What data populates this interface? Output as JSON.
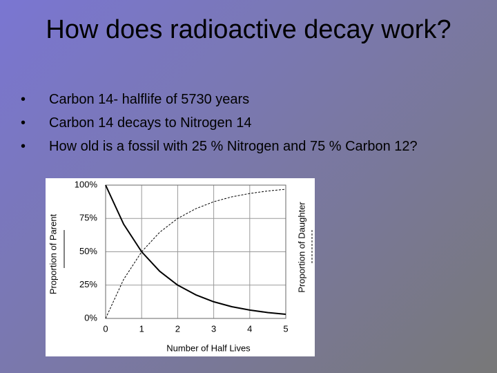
{
  "slide": {
    "title": "How does radioactive decay work?",
    "bullets": [
      "Carbon 14- halflife of 5730 years",
      "Carbon 14 decays to Nitrogen 14",
      "How old is a fossil with 25 % Nitrogen and 75 % Carbon 12?"
    ]
  },
  "chart_data": {
    "type": "line",
    "x_label": "Number of Half Lives",
    "x": [
      0,
      0.5,
      1,
      1.5,
      2,
      2.5,
      3,
      3.5,
      4,
      4.5,
      5
    ],
    "series": [
      {
        "name": "Proportion of Parent",
        "color": "#000000",
        "dash": "solid",
        "values": [
          100,
          70.7,
          50,
          35.4,
          25,
          17.7,
          12.5,
          8.8,
          6.25,
          4.4,
          3.1
        ]
      },
      {
        "name": "Proportion of Daughter",
        "color": "#000000",
        "dash": "dashed",
        "values": [
          0,
          29.3,
          50,
          64.6,
          75,
          82.3,
          87.5,
          91.2,
          93.75,
          95.6,
          96.9
        ]
      }
    ],
    "xlim": [
      0,
      5
    ],
    "xticks": [
      0,
      1,
      2,
      3,
      4,
      5
    ],
    "ylim": [
      0,
      100
    ],
    "yticks": [
      {
        "value": 0,
        "label": "0%"
      },
      {
        "value": 25,
        "label": "25%"
      },
      {
        "value": 50,
        "label": "50%"
      },
      {
        "value": 75,
        "label": "75%"
      },
      {
        "value": 100,
        "label": "100%"
      }
    ],
    "grid": true
  }
}
